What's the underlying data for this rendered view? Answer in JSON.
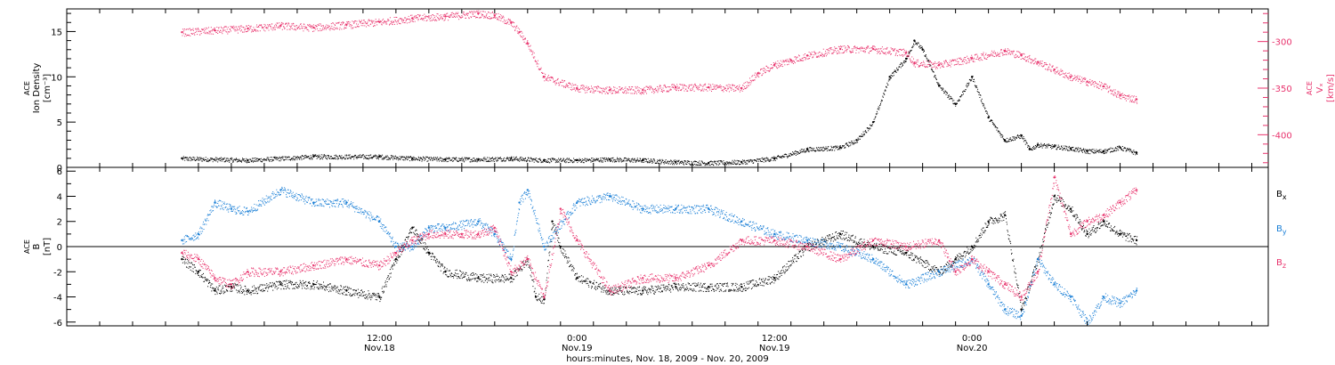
{
  "chart_data": [
    {
      "type": "scatter",
      "panel": "top",
      "ylabel_left": {
        "line1": "ACE",
        "line2": "Ion Density",
        "unit": "[cm⁻³]"
      },
      "ylabel_right": {
        "line1": "ACE",
        "line2": "Vₓ",
        "unit": "[km/s]"
      },
      "left_ylim": [
        0,
        17.5
      ],
      "left_ticks": [
        0,
        5,
        10,
        15
      ],
      "right_ylim": [
        -435,
        -265
      ],
      "right_ticks": [
        -300,
        -350,
        -400
      ],
      "colors": {
        "density": "#000000",
        "vx": "#e8336d"
      },
      "series": [
        {
          "key": "density",
          "axis": "left",
          "hours": [
            0,
            4,
            8,
            12,
            14,
            16,
            18,
            20,
            22,
            24,
            26,
            28,
            30,
            32,
            34,
            36,
            38,
            40,
            41,
            42,
            43,
            44,
            44.5,
            45,
            46,
            47,
            48,
            49,
            50,
            51,
            51.5,
            52,
            53,
            54,
            55,
            56,
            57,
            58
          ],
          "values": [
            1.0,
            0.8,
            1.2,
            1.2,
            1.0,
            0.9,
            0.9,
            1.0,
            0.8,
            0.8,
            0.9,
            0.8,
            0.6,
            0.5,
            0.6,
            1.0,
            2.0,
            2.2,
            3.0,
            5.0,
            10.0,
            12.0,
            14.0,
            13.0,
            9.0,
            7.0,
            10.0,
            5.5,
            3.0,
            3.5,
            2.0,
            2.5,
            2.3,
            2.1,
            1.8,
            1.8,
            2.2,
            1.6
          ]
        },
        {
          "key": "vx",
          "axis": "right",
          "hours": [
            0,
            2,
            4,
            6,
            8,
            10,
            12,
            14,
            16,
            18,
            19,
            20,
            20.5,
            21,
            22,
            24,
            26,
            28,
            30,
            32,
            34,
            35,
            36,
            37,
            38,
            40,
            42,
            44,
            44.5,
            46,
            48,
            50,
            51,
            52,
            53,
            54,
            55,
            56,
            57,
            58
          ],
          "values": [
            -290,
            -288,
            -286,
            -283,
            -285,
            -282,
            -279,
            -275,
            -273,
            -270,
            -272,
            -280,
            -290,
            -302,
            -338,
            -350,
            -352,
            -352,
            -349,
            -349,
            -350,
            -334,
            -325,
            -320,
            -315,
            -308,
            -308,
            -312,
            -323,
            -325,
            -318,
            -310,
            -315,
            -322,
            -330,
            -338,
            -343,
            -348,
            -358,
            -362
          ]
        }
      ]
    },
    {
      "type": "scatter",
      "panel": "bottom",
      "ylabel": {
        "line1": "ACE",
        "line2": "B",
        "unit": "[nT]"
      },
      "ylim": [
        -6.3,
        6.3
      ],
      "ticks": [
        6,
        4,
        2,
        0,
        -2,
        -4,
        -6
      ],
      "legend": [
        {
          "label": "B",
          "sub": "x",
          "color": "#000000"
        },
        {
          "label": "B",
          "sub": "y",
          "color": "#1a7fd6"
        },
        {
          "label": "B",
          "sub": "z",
          "color": "#e8336d"
        }
      ],
      "series": [
        {
          "key": "bx",
          "hours": [
            0,
            1,
            2,
            3,
            4,
            6,
            8,
            10,
            12,
            13,
            14,
            15,
            16,
            18,
            20,
            21,
            21.5,
            22,
            22.5,
            23,
            24,
            26,
            28,
            30,
            32,
            34,
            36,
            38,
            40,
            42,
            44,
            46,
            47,
            48,
            49,
            50,
            51,
            52,
            53,
            54,
            55,
            56,
            57,
            58
          ],
          "values": [
            -1,
            -2,
            -3.5,
            -3.2,
            -3.5,
            -3,
            -3,
            -3.5,
            -4,
            -1,
            1.5,
            -0.5,
            -2,
            -2.5,
            -2.5,
            -1,
            -4,
            -4.2,
            2,
            0,
            -2.5,
            -3.5,
            -3.5,
            -3.2,
            -3.2,
            -3.2,
            -2.5,
            0,
            1,
            0,
            -0.5,
            -2,
            -1,
            0,
            2,
            2.5,
            -5,
            -1,
            4,
            3,
            1,
            2,
            1,
            0.5
          ]
        },
        {
          "key": "by",
          "hours": [
            0,
            1,
            2,
            3,
            4,
            6,
            8,
            10,
            12,
            13,
            14,
            15,
            16,
            18,
            19,
            20,
            20.5,
            21,
            22,
            24,
            26,
            28,
            30,
            32,
            34,
            36,
            38,
            40,
            42,
            44,
            46,
            48,
            49,
            50,
            51,
            52,
            53,
            54,
            55,
            56,
            57,
            58
          ],
          "values": [
            0.5,
            1,
            3.5,
            3,
            2.8,
            4.5,
            3.5,
            3.5,
            2,
            0,
            0,
            1.5,
            1.5,
            2,
            1,
            -1,
            3.5,
            4.5,
            0,
            3.5,
            4,
            3,
            3,
            3,
            2,
            1,
            0.5,
            0,
            -1,
            -3,
            -2,
            -1,
            -3,
            -5,
            -5.5,
            -1,
            -3,
            -4,
            -6,
            -4,
            -4.5,
            -3.5
          ]
        },
        {
          "key": "bz",
          "hours": [
            0,
            1,
            2,
            3,
            4,
            6,
            8,
            10,
            12,
            13,
            14,
            15,
            16,
            17,
            18,
            19,
            20,
            21,
            22,
            23,
            24,
            26,
            28,
            30,
            32,
            34,
            36,
            38,
            40,
            42,
            44,
            46,
            47,
            48,
            49,
            50,
            51,
            52,
            53,
            54,
            55,
            56,
            57,
            58
          ],
          "values": [
            -0.5,
            -1,
            -2.5,
            -3,
            -2,
            -2,
            -1.5,
            -1,
            -1.5,
            -0.5,
            0.5,
            1,
            1,
            1,
            1,
            1.5,
            -2,
            -1,
            -4,
            3,
            0.5,
            -3.5,
            -2.5,
            -2.5,
            -1.5,
            0.5,
            0.5,
            0,
            -1,
            0.5,
            0,
            0.5,
            -2,
            -1,
            -2,
            -3,
            -4,
            -2,
            5.5,
            1,
            2,
            2.5,
            3.5,
            4.5
          ]
        }
      ]
    }
  ],
  "x_axis": {
    "label": "hours:minutes, Nov. 18, 2009 - Nov. 20, 2009",
    "xlim_hours": [
      -7,
      66
    ],
    "major_ticks": [
      {
        "hour": 12,
        "time": "12:00",
        "date": "Nov.18"
      },
      {
        "hour": 24,
        "time": "0:00",
        "date": "Nov.19"
      },
      {
        "hour": 36,
        "time": "12:00",
        "date": "Nov.19"
      },
      {
        "hour": 48,
        "time": "0:00",
        "date": "Nov.20"
      }
    ]
  }
}
